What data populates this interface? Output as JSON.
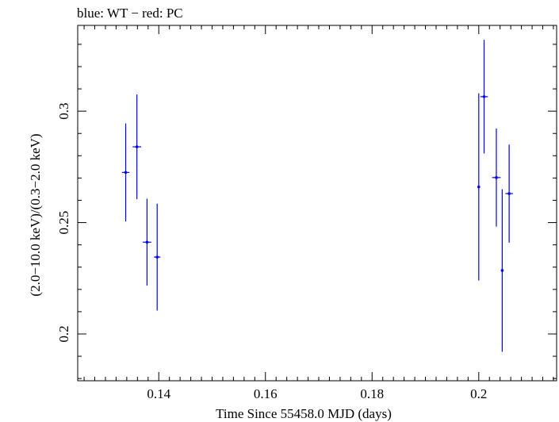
{
  "chart_data": {
    "type": "scatter",
    "title": "blue: WT − red: PC",
    "xlabel": "Time Since 55458.0 MJD (days)",
    "ylabel": "(2.0−10.0 keV)/(0.3−2.0 keV)",
    "xlim": [
      0.1248,
      0.2146
    ],
    "ylim": [
      0.179,
      0.3385
    ],
    "x_ticks": [
      {
        "value": 0.14,
        "label": "0.14"
      },
      {
        "value": 0.16,
        "label": "0.16"
      },
      {
        "value": 0.18,
        "label": "0.18"
      },
      {
        "value": 0.2,
        "label": "0.2"
      }
    ],
    "y_ticks": [
      {
        "value": 0.2,
        "label": "0.2"
      },
      {
        "value": 0.25,
        "label": "0.25"
      },
      {
        "value": 0.3,
        "label": "0.3"
      }
    ],
    "grid": false,
    "series": [
      {
        "name": "WT",
        "color": "#0000ff",
        "points": [
          {
            "x": 0.1338,
            "xerr": 0.0007,
            "y": 0.2725,
            "yerr": 0.022
          },
          {
            "x": 0.1359,
            "xerr": 0.0008,
            "y": 0.284,
            "yerr": 0.0235
          },
          {
            "x": 0.1378,
            "xerr": 0.0008,
            "y": 0.2412,
            "yerr": 0.0195
          },
          {
            "x": 0.1397,
            "xerr": 0.0006,
            "y": 0.2345,
            "yerr": 0.024
          },
          {
            "x": 0.2,
            "xerr": 0.0001,
            "y": 0.266,
            "yerr": 0.042
          },
          {
            "x": 0.201,
            "xerr": 0.0007,
            "y": 0.3065,
            "yerr": 0.0255
          },
          {
            "x": 0.2033,
            "xerr": 0.0008,
            "y": 0.2702,
            "yerr": 0.022
          },
          {
            "x": 0.2044,
            "xerr": 0.0001,
            "y": 0.2285,
            "yerr": 0.0365
          },
          {
            "x": 0.2057,
            "xerr": 0.0007,
            "y": 0.263,
            "yerr": 0.022
          }
        ]
      }
    ]
  }
}
